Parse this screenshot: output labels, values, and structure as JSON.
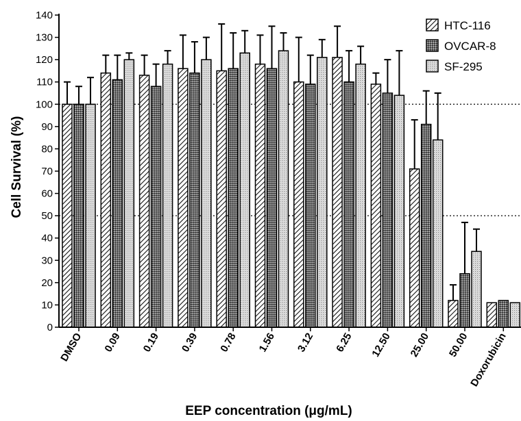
{
  "chart_data": {
    "type": "bar",
    "xlabel": "EEP concentration (μg/mL)",
    "ylabel": "Cell Survival (%)",
    "ylim": [
      0,
      140
    ],
    "yticks": [
      0,
      10,
      20,
      30,
      40,
      50,
      60,
      70,
      80,
      90,
      100,
      110,
      120,
      130,
      140
    ],
    "reference_lines": [
      50,
      100
    ],
    "grid": false,
    "legend_position": "top-right",
    "categories": [
      "DMSO",
      "0.09",
      "0.19",
      "0.39",
      "0.78",
      "1.56",
      "3.12",
      "6.25",
      "12.50",
      "25.00",
      "50.00",
      "Doxorubicin"
    ],
    "series": [
      {
        "name": "HTC-116",
        "pattern": "diagonal-hatch",
        "values": [
          100,
          114,
          113,
          116,
          115,
          118,
          110,
          121,
          109,
          71,
          12,
          11
        ],
        "errors": [
          10,
          8,
          9,
          15,
          21,
          13,
          20,
          14,
          5,
          22,
          7,
          0
        ]
      },
      {
        "name": "OVCAR-8",
        "pattern": "dark-dots",
        "values": [
          100,
          111,
          108,
          114,
          116,
          116,
          109,
          110,
          105,
          91,
          24,
          12
        ],
        "errors": [
          8,
          11,
          10,
          14,
          16,
          19,
          13,
          14,
          15,
          15,
          23,
          0
        ]
      },
      {
        "name": "SF-295",
        "pattern": "light-dots",
        "values": [
          100,
          120,
          118,
          120,
          123,
          124,
          121,
          118,
          104,
          84,
          34,
          11
        ],
        "errors": [
          12,
          3,
          6,
          10,
          10,
          8,
          8,
          8,
          20,
          21,
          10,
          0
        ]
      }
    ]
  }
}
